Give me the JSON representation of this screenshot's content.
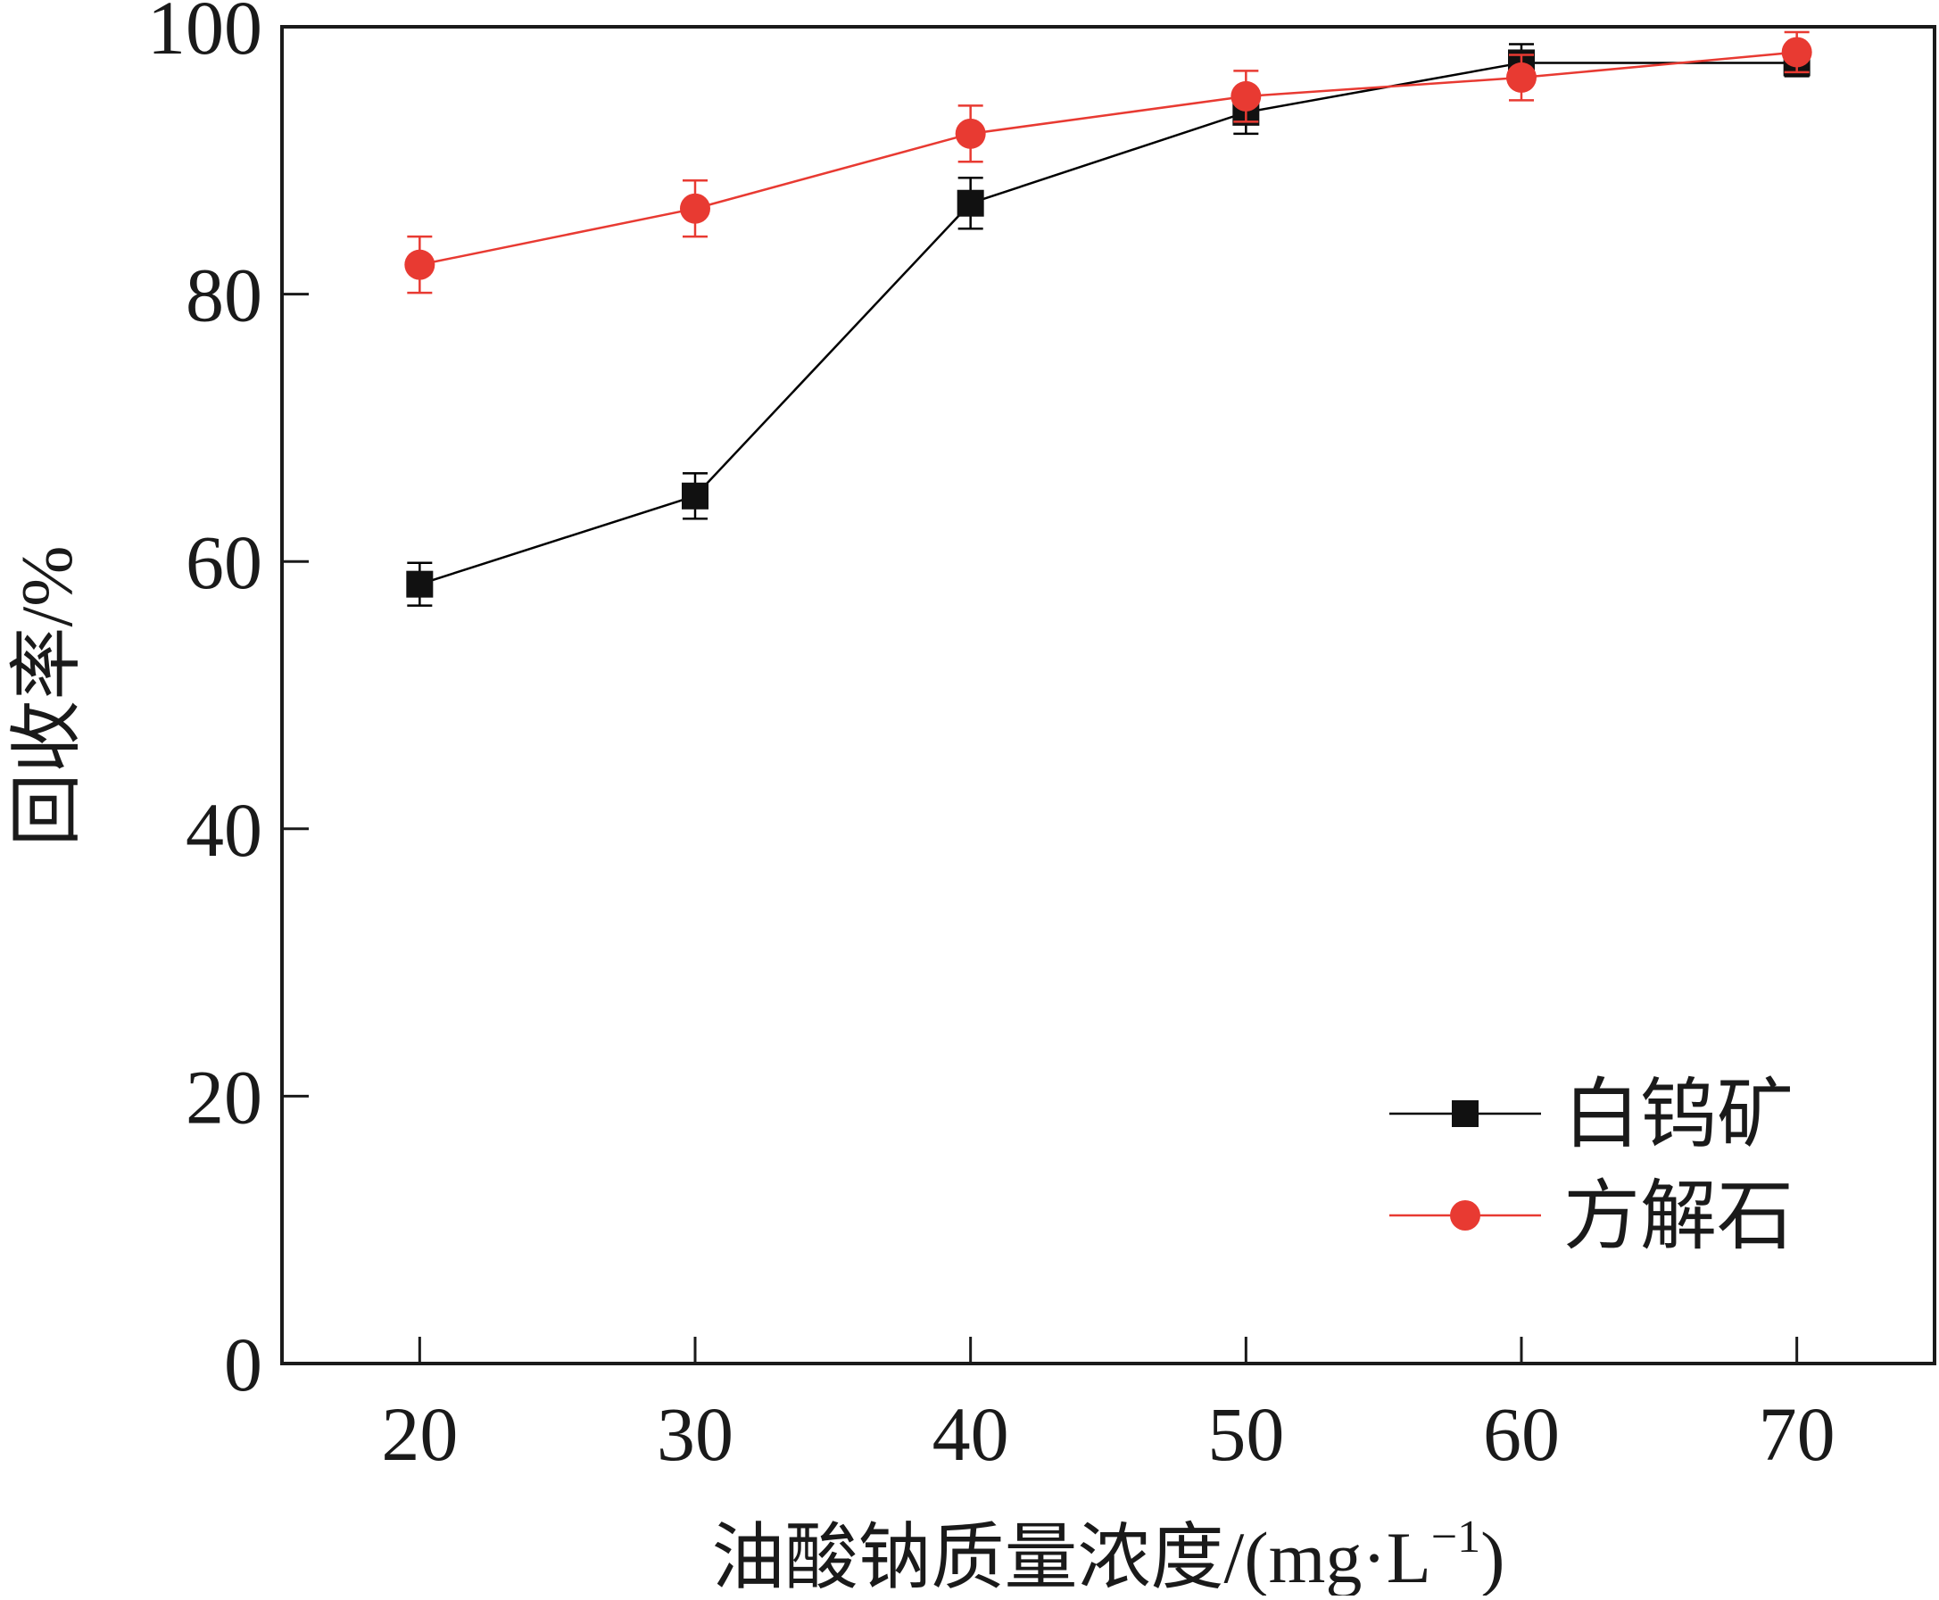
{
  "chart_data": {
    "type": "line",
    "xlabel": "油酸钠质量浓度/(mg·L",
    "xlabel_unit_sup": "−1",
    "xlabel_close": ")",
    "ylabel": "回收率/%",
    "xlim": [
      15,
      75
    ],
    "ylim": [
      0,
      100
    ],
    "x_ticks": [
      20,
      30,
      40,
      50,
      60,
      70
    ],
    "y_ticks": [
      0,
      20,
      40,
      60,
      80,
      100
    ],
    "x_tick_labels": [
      "20",
      "30",
      "40",
      "50",
      "60",
      "70"
    ],
    "y_tick_labels": [
      "0",
      "20",
      "40",
      "60",
      "80",
      "100"
    ],
    "x": [
      20,
      30,
      40,
      50,
      60,
      70
    ],
    "legend_position": "bottom-right",
    "series": [
      {
        "name": "白钨矿",
        "marker": "square",
        "color": "#000000",
        "values": [
          58.3,
          64.9,
          86.8,
          93.6,
          97.3,
          97.3
        ],
        "errors": [
          1.6,
          1.7,
          1.9,
          1.6,
          1.4,
          1.0
        ]
      },
      {
        "name": "方解石",
        "marker": "circle",
        "color": "#e83a32",
        "values": [
          82.2,
          86.4,
          92.0,
          94.8,
          96.2,
          98.1
        ],
        "errors": [
          2.1,
          2.1,
          2.1,
          1.9,
          1.7,
          1.5
        ]
      }
    ]
  }
}
